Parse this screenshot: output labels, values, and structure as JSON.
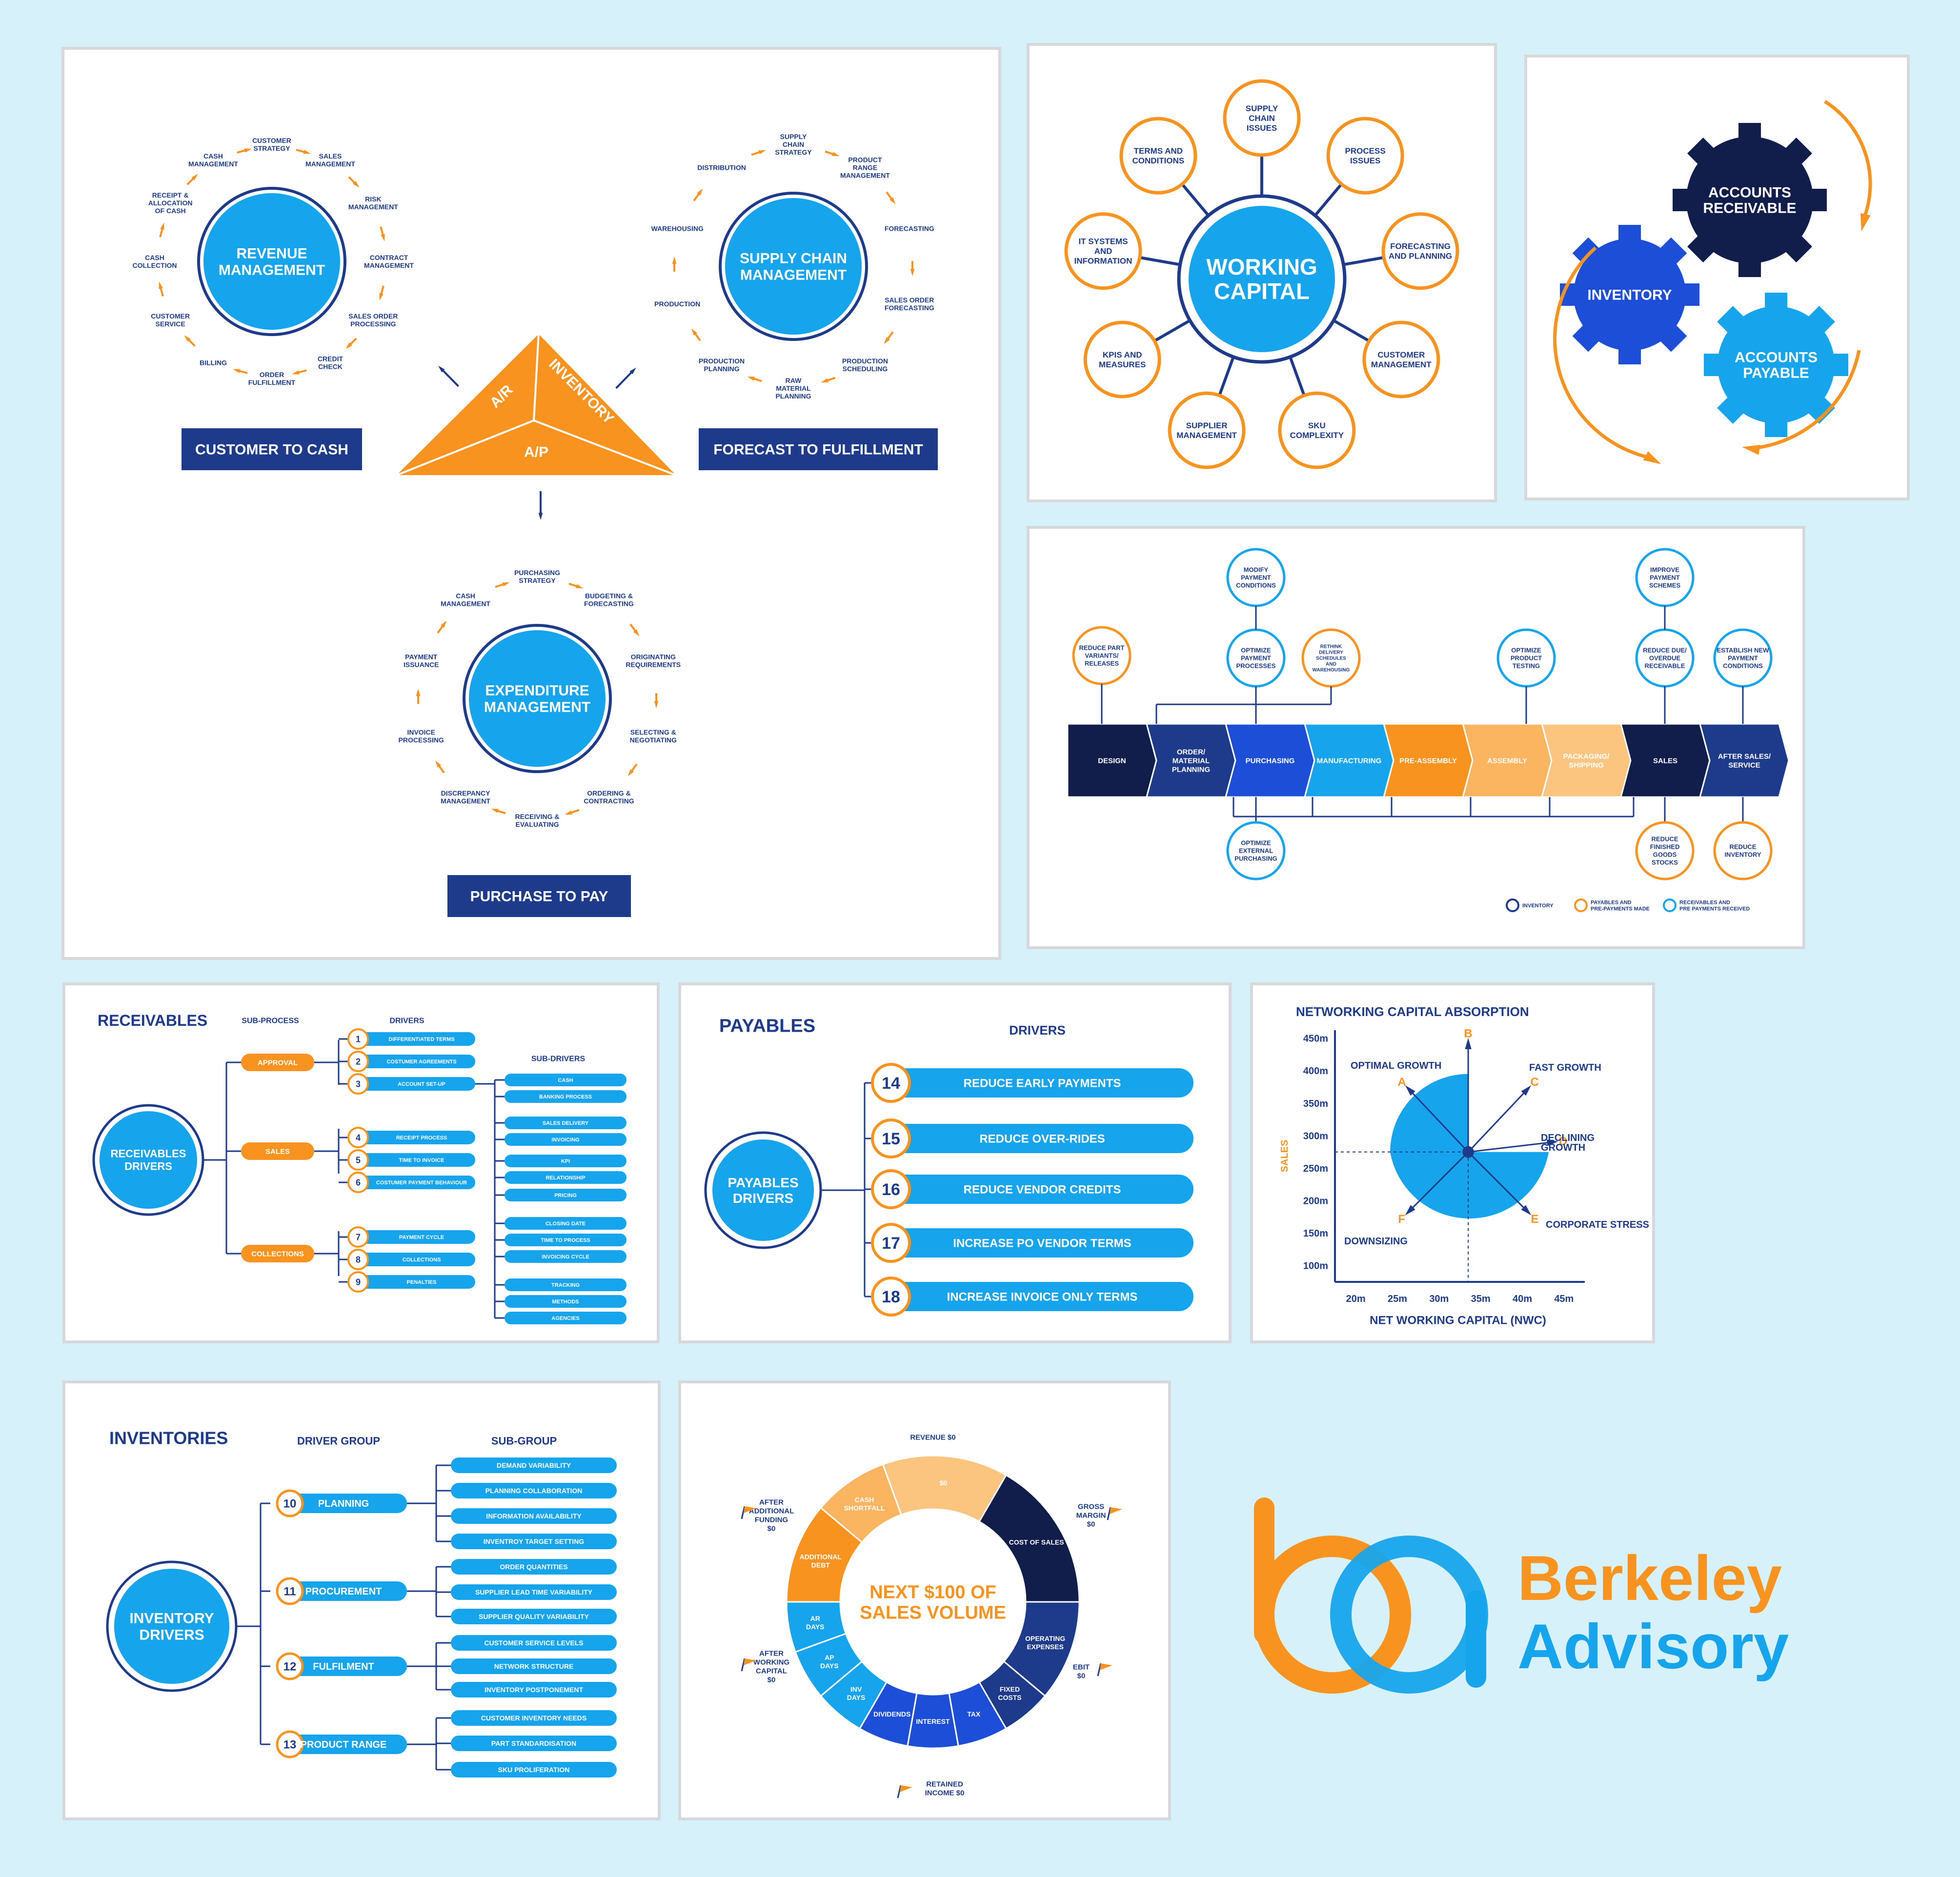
{
  "colors": {
    "navy": "#1e3a8a",
    "dark_navy": "#111d4a",
    "blue": "#0ea5e9",
    "bright_blue": "#16a5ec",
    "orange": "#f7931e",
    "light_orange": "#fbb45f",
    "background": "#d7f1fb"
  },
  "cycles": {
    "revenue": {
      "center": "REVENUE|MANAGEMENT",
      "banner": "CUSTOMER TO CASH",
      "steps": [
        "CUSTOMER|STRATEGY",
        "SALES|MANAGEMENT",
        "RISK|MANAGEMENT",
        "CONTRACT|MANAGEMENT",
        "SALES ORDER|PROCESSING",
        "CREDIT|CHECK",
        "ORDER|FULFILLMENT",
        "BILLING",
        "CUSTOMER|SERVICE",
        "CASH|COLLECTION",
        "RECEIPT &|ALLOCATION|OF CASH",
        "CASH|MANAGEMENT"
      ]
    },
    "supply": {
      "center": "SUPPLY CHAIN|MANAGEMENT",
      "banner": "FORECAST TO FULFILLMENT",
      "steps": [
        "SUPPLY|CHAIN|STRATEGY",
        "PRODUCT|RANGE|MANAGEMENT",
        "FORECASTING",
        "SALES ORDER|FORECASTING",
        "PRODUCTION|SCHEDULING",
        "RAW|MATERIAL|PLANNING",
        "PRODUCTION|PLANNING",
        "PRODUCTION",
        "WAREHOUSING",
        "DISTRIBUTION"
      ]
    },
    "expenditure": {
      "center": "EXPENDITURE|MANAGEMENT",
      "banner": "PURCHASE TO PAY",
      "steps": [
        "PURCHASING|STRATEGY",
        "BUDGETING &|FORECASTING",
        "ORIGINATING|REQUIREMENTS",
        "SELECTING &|NEGOTIATING",
        "ORDERING &|CONTRACTING",
        "RECEIVING &|EVALUATING",
        "DISCREPANCY|MANAGEMENT",
        "INVOICE|PROCESSING",
        "PAYMENT|ISSUANCE",
        "CASH|MANAGEMENT"
      ]
    },
    "triangle": {
      "left": "A/R",
      "right": "INVENTORY",
      "bottom": "A/P"
    }
  },
  "working_capital": {
    "center": "WORKING|CAPITAL",
    "nodes": [
      "SUPPLY|CHAIN|ISSUES",
      "PROCESS|ISSUES",
      "FORECASTING|AND PLANNING",
      "CUSTOMER|MANAGEMENT",
      "SKU|COMPLEXITY",
      "SUPPLIER|MANAGEMENT",
      "KPIS AND|MEASURES",
      "IT SYSTEMS|AND|INFORMATION",
      "TERMS AND|CONDITIONS"
    ]
  },
  "gears": {
    "ar": "ACCOUNTS|RECEIVABLE",
    "inventory": "INVENTORY",
    "ap": "ACCOUNTS|PAYABLE"
  },
  "value_chain": {
    "stages": [
      "DESIGN",
      "ORDER/|MATERIAL|PLANNING",
      "PURCHASING",
      "MANUFACTURING",
      "PRE-ASSEMBLY",
      "ASSEMBLY",
      "PACKAGING/|SHIPPING",
      "SALES",
      "AFTER  SALES/|SERVICE"
    ],
    "stage_colors": [
      "#111d4a",
      "#1e3a8a",
      "#1d4ed8",
      "#16a5ec",
      "#f7931e",
      "#fbb45f",
      "#fcc57f",
      "#111d4a",
      "#1e3a8a"
    ],
    "top_circles": [
      "REDUCE PART|VARIANTS/|RELEASES",
      "MODIFY|PAYMENT|CONDITIONS",
      "OPTIMIZE|PAYMENT|PROCESSES",
      "RETHINK|DELIVERY|SCHEDULES|AND|WAREHOUSING",
      "OPTIMIZE|PRODUCT|TESTING",
      "IMPROVE|PAYMENT|SCHEMES",
      "REDUCE DUE/|OVERDUE|RECEIVABLE",
      "ESTABLISH NEW|PAYMENT|CONDITIONS"
    ],
    "bottom_circles": [
      "OPTIMIZE|EXTERNAL|PURCHASING",
      "REDUCE|FINISHED|GOODS|STOCKS",
      "REDUCE|INVENTORY"
    ],
    "legend": [
      "INVENTORY",
      "PAYABLES AND|PRE-PAYMENTS MADE",
      "RECEIVABLES AND|PRE PAYMENTS RECEIVED"
    ]
  },
  "receivables": {
    "title": "RECEIVABLES",
    "col_subprocess": "SUB-PROCESS",
    "col_drivers": "DRIVERS",
    "col_subdrivers": "SUB-DRIVERS",
    "center": "RECEIVABLES|DRIVERS",
    "subprocesses": [
      "APPROVAL",
      "SALES",
      "COLLECTIONS"
    ],
    "drivers": [
      {
        "n": "1",
        "label": "DIFFERENTIATED TERMS"
      },
      {
        "n": "2",
        "label": "COSTUMER AGREEMENTS"
      },
      {
        "n": "3",
        "label": "ACCOUNT SET-UP"
      },
      {
        "n": "4",
        "label": "RECEIPT PROCESS"
      },
      {
        "n": "5",
        "label": "TIME TO INVOICE"
      },
      {
        "n": "6",
        "label": "COSTUMER PAYMENT BEHAVIOUR"
      },
      {
        "n": "7",
        "label": "PAYMENT CYCLE"
      },
      {
        "n": "8",
        "label": "COLLECTIONS"
      },
      {
        "n": "9",
        "label": "PENALTIES"
      }
    ],
    "subdrivers": [
      "CASH",
      "BANKING PROCESS",
      "SALES DELIVERY",
      "INVOICING",
      "KPI",
      "RELATIONSHIP",
      "PRICING",
      "CLOSING DATE",
      "TIME TO PROCESS",
      "INVOICING CYCLE",
      "TRACKING",
      "METHODS",
      "AGENCIES"
    ]
  },
  "payables": {
    "title": "PAYABLES",
    "col_drivers": "DRIVERS",
    "center": "PAYABLES|DRIVERS",
    "drivers": [
      {
        "n": "14",
        "label": "REDUCE EARLY PAYMENTS"
      },
      {
        "n": "15",
        "label": "REDUCE OVER-RIDES"
      },
      {
        "n": "16",
        "label": "REDUCE VENDOR CREDITS"
      },
      {
        "n": "17",
        "label": "INCREASE PO VENDOR TERMS"
      },
      {
        "n": "18",
        "label": "INCREASE INVOICE ONLY TERMS"
      }
    ]
  },
  "chart_data": {
    "type": "scatter",
    "title": "NETWORKING CAPITAL ABSORPTION",
    "xlabel": "NET WORKING CAPITAL (NWC)",
    "ylabel": "SALES",
    "x_ticks": [
      "20m",
      "25m",
      "30m",
      "35m",
      "40m",
      "45m"
    ],
    "y_ticks": [
      "450m",
      "400m",
      "350m",
      "300m",
      "250m",
      "200m",
      "150m",
      "100m"
    ],
    "xlim": [
      17.5,
      47.5
    ],
    "ylim": [
      75,
      462.5
    ],
    "origin": [
      33.5,
      275
    ],
    "points": [
      {
        "letter": "A",
        "label": "OPTIMAL GROWTH",
        "x": 26.5,
        "y": 370
      },
      {
        "letter": "B",
        "label": "",
        "x": 33.5,
        "y": 440
      },
      {
        "letter": "C",
        "label": "FAST GROWTH",
        "x": 40.5,
        "y": 370
      },
      {
        "letter": "D",
        "label": "DECLINING|GROWTH",
        "x": 43.5,
        "y": 290
      },
      {
        "letter": "E",
        "label": "CORPORATE STRESS",
        "x": 40.5,
        "y": 185
      },
      {
        "letter": "F",
        "label": "DOWNSIZING",
        "x": 26.5,
        "y": 185
      }
    ]
  },
  "inventories": {
    "title": "INVENTORIES",
    "col_group": "DRIVER GROUP",
    "col_subgroup": "SUB-GROUP",
    "center": "INVENTORY|DRIVERS",
    "groups": [
      {
        "n": "10",
        "label": "PLANNING",
        "subs": [
          "DEMAND VARIABILITY",
          "PLANNING COLLABORATION",
          "INFORMATION AVAILABILITY",
          "INVENTROY TARGET SETTING"
        ]
      },
      {
        "n": "11",
        "label": "PROCUREMENT",
        "subs": [
          "ORDER QUANTITIES",
          "SUPPLIER LEAD TIME VARIABILITY",
          "SUPPLIER QUALITY VARIABILITY"
        ]
      },
      {
        "n": "12",
        "label": "FULFILMENT",
        "subs": [
          "CUSTOMER SERVICE LEVELS",
          "NETWORK STRUCTURE",
          "INVENTORY POSTPONEMENT"
        ]
      },
      {
        "n": "13",
        "label": "PRODUCT RANGE",
        "subs": [
          "CUSTOMER INVENTORY NEEDS",
          "PART STANDARDISATION",
          "SKU PROLIFERATION"
        ]
      }
    ]
  },
  "donut": {
    "center": "NEXT $100 OF|SALES VOLUME",
    "segments": [
      "$0",
      "COST OF SALES",
      "OPERATING|EXPENSES",
      "FIXED|COSTS",
      "TAX",
      "INTEREST",
      "DIVIDENDS",
      "INV|DAYS",
      "AP|DAYS",
      "AR|DAYS",
      "ADDITIONAL|DEBT",
      "CASH|SHORTFALL"
    ],
    "outer_labels": [
      "REVENUE $0",
      "GROSS|MARGIN|$0",
      "EBIT|$0",
      "RETAINED|INCOME $0",
      "AFTER|WORKING|CAPITAL|$0",
      "AFTER|ADDITIONAL|FUNDING|$0"
    ]
  },
  "logo": {
    "line1": "Berkeley",
    "line2": "Advisory"
  }
}
